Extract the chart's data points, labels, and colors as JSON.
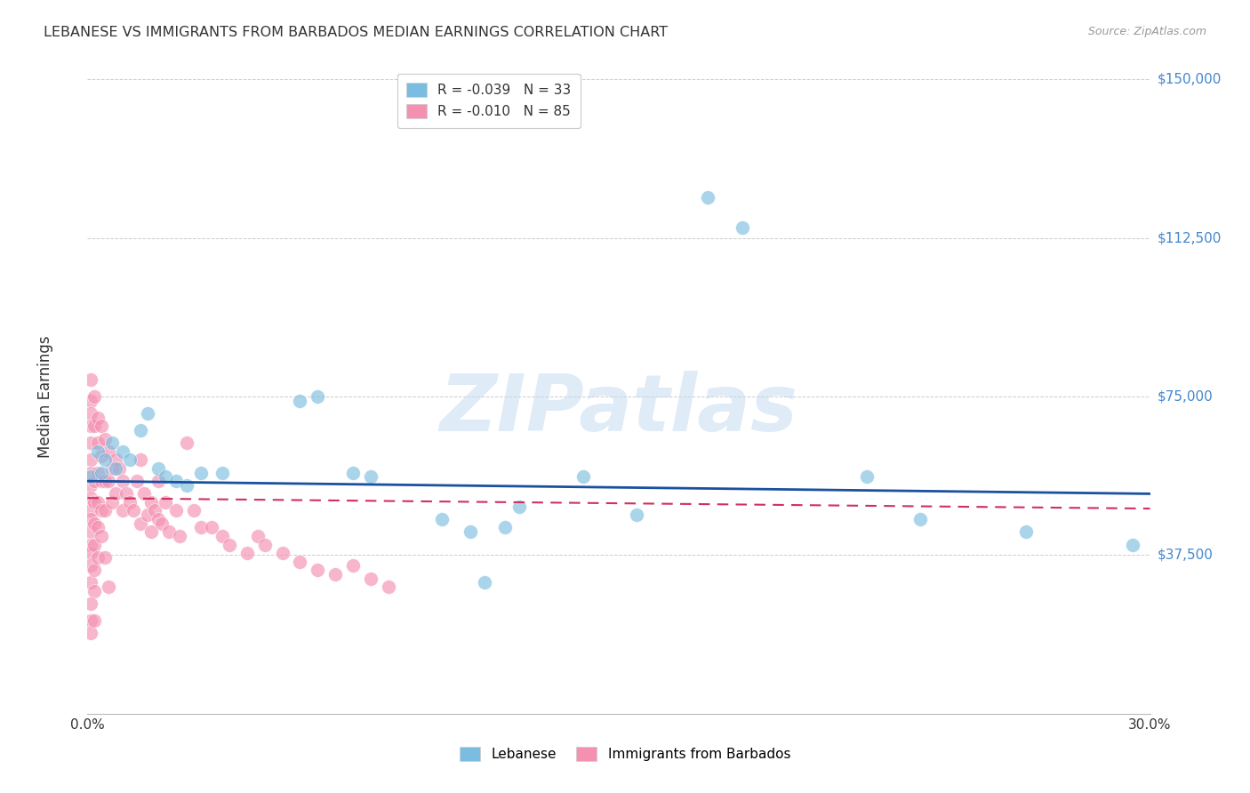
{
  "title": "LEBANESE VS IMMIGRANTS FROM BARBADOS MEDIAN EARNINGS CORRELATION CHART",
  "source": "Source: ZipAtlas.com",
  "ylabel": "Median Earnings",
  "xlim": [
    0.0,
    0.3
  ],
  "ylim": [
    0,
    150000
  ],
  "yticks": [
    0,
    37500,
    75000,
    112500,
    150000
  ],
  "ytick_labels": [
    "",
    "$37,500",
    "$75,000",
    "$112,500",
    "$150,000"
  ],
  "background_color": "#ffffff",
  "watermark": "ZIPatlas",
  "blue_R": "-0.039",
  "blue_N": "33",
  "pink_R": "-0.010",
  "pink_N": "85",
  "legend_bottom": [
    "Lebanese",
    "Immigrants from Barbados"
  ],
  "blue_color": "#7bbde0",
  "pink_color": "#f490b0",
  "blue_line_color": "#1a50a0",
  "pink_line_color": "#d03060",
  "blue_scatter_x": [
    0.001,
    0.003,
    0.004,
    0.005,
    0.007,
    0.008,
    0.01,
    0.012,
    0.015,
    0.017,
    0.02,
    0.022,
    0.025,
    0.028,
    0.032,
    0.038,
    0.06,
    0.065,
    0.075,
    0.08,
    0.1,
    0.108,
    0.112,
    0.118,
    0.122,
    0.14,
    0.155,
    0.175,
    0.185,
    0.22,
    0.235,
    0.265,
    0.295
  ],
  "blue_scatter_y": [
    56000,
    62000,
    57000,
    60000,
    64000,
    58000,
    62000,
    60000,
    67000,
    71000,
    58000,
    56000,
    55000,
    54000,
    57000,
    57000,
    74000,
    75000,
    57000,
    56000,
    46000,
    43000,
    31000,
    44000,
    49000,
    56000,
    47000,
    122000,
    115000,
    56000,
    46000,
    43000,
    40000
  ],
  "pink_scatter_x": [
    0.001,
    0.001,
    0.001,
    0.001,
    0.001,
    0.001,
    0.001,
    0.001,
    0.001,
    0.001,
    0.001,
    0.001,
    0.001,
    0.001,
    0.001,
    0.001,
    0.002,
    0.002,
    0.002,
    0.002,
    0.002,
    0.002,
    0.002,
    0.003,
    0.003,
    0.003,
    0.003,
    0.003,
    0.004,
    0.004,
    0.004,
    0.004,
    0.005,
    0.005,
    0.005,
    0.006,
    0.006,
    0.007,
    0.007,
    0.008,
    0.008,
    0.009,
    0.01,
    0.01,
    0.011,
    0.012,
    0.013,
    0.014,
    0.015,
    0.015,
    0.016,
    0.017,
    0.018,
    0.018,
    0.019,
    0.02,
    0.02,
    0.021,
    0.022,
    0.023,
    0.025,
    0.026,
    0.028,
    0.03,
    0.032,
    0.035,
    0.038,
    0.04,
    0.045,
    0.048,
    0.05,
    0.055,
    0.06,
    0.065,
    0.07,
    0.075,
    0.08,
    0.085,
    0.002,
    0.003,
    0.004,
    0.005,
    0.006,
    0.001,
    0.001,
    0.001,
    0.002
  ],
  "pink_scatter_y": [
    79000,
    74000,
    71000,
    68000,
    64000,
    60000,
    57000,
    54000,
    51000,
    48000,
    46000,
    43000,
    40000,
    38000,
    35000,
    31000,
    75000,
    68000,
    55000,
    50000,
    45000,
    40000,
    34000,
    70000,
    64000,
    57000,
    50000,
    44000,
    68000,
    61000,
    55000,
    48000,
    65000,
    55000,
    48000,
    62000,
    55000,
    58000,
    50000,
    60000,
    52000,
    58000,
    55000,
    48000,
    52000,
    50000,
    48000,
    55000,
    60000,
    45000,
    52000,
    47000,
    50000,
    43000,
    48000,
    55000,
    46000,
    45000,
    50000,
    43000,
    48000,
    42000,
    64000,
    48000,
    44000,
    44000,
    42000,
    40000,
    38000,
    42000,
    40000,
    38000,
    36000,
    34000,
    33000,
    35000,
    32000,
    30000,
    29000,
    37000,
    42000,
    37000,
    30000,
    26000,
    22000,
    19000,
    22000
  ],
  "blue_trend_x": [
    0.0,
    0.3
  ],
  "blue_trend_y": [
    55000,
    52000
  ],
  "pink_trend_x": [
    0.0,
    0.3
  ],
  "pink_trend_y": [
    51000,
    48500
  ]
}
